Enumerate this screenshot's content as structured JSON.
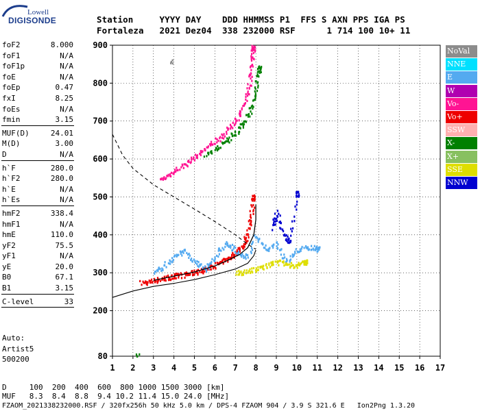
{
  "logo": {
    "top": "Lowell",
    "bottom": "DIGISONDE"
  },
  "header": {
    "line1": "Station     YYYY DAY    DDD HHMMSS P1  FFS S AXN PPS IGA PS",
    "line2": "Fortaleza   2021 Dez04  338 232000 RSF      1 714 100 10+ 11"
  },
  "params": [
    [
      {
        "name": "foF2",
        "value": "8.000"
      },
      {
        "name": "foF1",
        "value": "N/A"
      },
      {
        "name": "foF1p",
        "value": "N/A"
      },
      {
        "name": "foE",
        "value": "N/A"
      },
      {
        "name": "foEp",
        "value": "0.47"
      },
      {
        "name": "fxI",
        "value": "8.25"
      },
      {
        "name": "foEs",
        "value": "N/A"
      },
      {
        "name": "fmin",
        "value": "3.15"
      }
    ],
    [
      {
        "name": "MUF(D)",
        "value": "24.01"
      },
      {
        "name": "M(D)",
        "value": "3.00"
      },
      {
        "name": "D",
        "value": "N/A"
      }
    ],
    [
      {
        "name": "h`F",
        "value": "280.0"
      },
      {
        "name": "h`F2",
        "value": "280.0"
      },
      {
        "name": "h`E",
        "value": "N/A"
      },
      {
        "name": "h`Es",
        "value": "N/A"
      }
    ],
    [
      {
        "name": "hmF2",
        "value": "338.4"
      },
      {
        "name": "hmF1",
        "value": "N/A"
      },
      {
        "name": "hmE",
        "value": "110.0"
      },
      {
        "name": "yF2",
        "value": "75.5"
      },
      {
        "name": "yF1",
        "value": "N/A"
      },
      {
        "name": "yE",
        "value": "20.0"
      },
      {
        "name": "B0",
        "value": "67.1"
      },
      {
        "name": "B1",
        "value": "3.15"
      }
    ],
    [
      {
        "name": "C-level",
        "value": "33"
      }
    ]
  ],
  "auto": {
    "line1": "Auto:",
    "line2": "Artist5",
    "line3": "500200"
  },
  "legend": [
    {
      "label": "NoVal",
      "color": "#8c8c8c"
    },
    {
      "label": "NNE",
      "color": "#00e0ff"
    },
    {
      "label": "E",
      "color": "#54aaf0"
    },
    {
      "label": "W",
      "color": "#b000b0"
    },
    {
      "label": "Vo-",
      "color": "#ff1493"
    },
    {
      "label": "Vo+",
      "color": "#ee0000"
    },
    {
      "label": "SSW",
      "color": "#ffb0b0"
    },
    {
      "label": "X-",
      "color": "#008000"
    },
    {
      "label": "X+",
      "color": "#88c060"
    },
    {
      "label": "SSE",
      "color": "#dede00"
    },
    {
      "label": "NNW",
      "color": "#0000d0"
    }
  ],
  "footer": {
    "line1": "D     100  200  400  600  800 1000 1500 3000 [km]",
    "line2": "MUF   8.3  8.4  8.8  9.4 10.2 11.4 15.0 24.0 [MHz]",
    "line3": "FZAOM_2021338232000.RSF / 320fx256h 50 kHz 5.0 km / DPS-4 FZAOM 904 / 3.9 S 321.6 E   Ion2Png 1.3.20"
  },
  "chart_data": {
    "type": "scatter",
    "xlim": [
      1,
      17
    ],
    "ylim": [
      80,
      900
    ],
    "x_ticks": [
      1,
      2,
      3,
      4,
      5,
      6,
      7,
      8,
      9,
      10,
      11,
      12,
      13,
      14,
      15,
      16,
      17
    ],
    "y_ticks": [
      80,
      200,
      300,
      400,
      500,
      600,
      700,
      800,
      900
    ],
    "grid": true,
    "legend_position": "right",
    "traces": [
      {
        "series": "Vo+",
        "points": [
          [
            2.4,
            275
          ],
          [
            2.8,
            279
          ],
          [
            3.2,
            284
          ],
          [
            3.6,
            288
          ],
          [
            4.0,
            292
          ],
          [
            4.4,
            296
          ],
          [
            4.8,
            301
          ],
          [
            5.2,
            306
          ],
          [
            5.6,
            313
          ],
          [
            6.0,
            322
          ],
          [
            6.4,
            333
          ],
          [
            6.8,
            346
          ],
          [
            7.1,
            360
          ],
          [
            7.4,
            380
          ],
          [
            7.6,
            410
          ],
          [
            7.75,
            450
          ],
          [
            7.85,
            500
          ]
        ]
      },
      {
        "series": "Vo-",
        "points": [
          [
            3.3,
            545
          ],
          [
            3.8,
            562
          ],
          [
            4.3,
            580
          ],
          [
            4.8,
            600
          ],
          [
            5.3,
            620
          ],
          [
            5.8,
            640
          ],
          [
            6.3,
            662
          ],
          [
            6.8,
            690
          ],
          [
            7.2,
            720
          ],
          [
            7.5,
            760
          ],
          [
            7.7,
            810
          ],
          [
            7.8,
            860
          ],
          [
            7.85,
            895
          ]
        ]
      },
      {
        "series": "X-",
        "points": [
          [
            5.5,
            610
          ],
          [
            6.0,
            628
          ],
          [
            6.5,
            648
          ],
          [
            7.0,
            672
          ],
          [
            7.4,
            700
          ],
          [
            7.8,
            740
          ],
          [
            8.0,
            790
          ],
          [
            8.15,
            840
          ]
        ]
      },
      {
        "series": "E",
        "points": [
          [
            3.0,
            300
          ],
          [
            3.5,
            320
          ],
          [
            4.0,
            345
          ],
          [
            4.5,
            360
          ],
          [
            5.0,
            330
          ],
          [
            5.5,
            310
          ],
          [
            6.0,
            345
          ],
          [
            6.5,
            380
          ],
          [
            7.0,
            360
          ],
          [
            7.5,
            340
          ],
          [
            8.0,
            400
          ],
          [
            8.5,
            360
          ],
          [
            9.0,
            380
          ],
          [
            9.5,
            330
          ],
          [
            10.0,
            360
          ],
          [
            10.5,
            370
          ],
          [
            11.0,
            365
          ]
        ]
      },
      {
        "series": "SSE",
        "points": [
          [
            7.0,
            300
          ],
          [
            7.5,
            305
          ],
          [
            8.0,
            310
          ],
          [
            8.5,
            320
          ],
          [
            9.0,
            330
          ],
          [
            9.5,
            325
          ],
          [
            10.0,
            320
          ],
          [
            10.4,
            330
          ]
        ]
      },
      {
        "series": "NNW",
        "points": [
          [
            8.8,
            420
          ],
          [
            9.0,
            460
          ],
          [
            9.4,
            400
          ],
          [
            9.6,
            380
          ],
          [
            10.0,
            510
          ]
        ]
      },
      {
        "series": "NoVal",
        "points": [
          [
            3.9,
            860
          ]
        ]
      },
      {
        "series": "X-",
        "points": [
          [
            2.2,
            82
          ]
        ]
      }
    ],
    "profile_curve": [
      [
        3.0,
        280
      ],
      [
        4.0,
        291
      ],
      [
        5.0,
        302
      ],
      [
        6.0,
        318
      ],
      [
        6.6,
        332
      ],
      [
        7.2,
        348
      ],
      [
        7.6,
        366
      ],
      [
        7.9,
        400
      ],
      [
        8.0,
        440
      ],
      [
        8.0,
        480
      ]
    ],
    "profile_curve_lower": [
      [
        1.0,
        235
      ],
      [
        2.0,
        252
      ],
      [
        3.0,
        264
      ],
      [
        4.0,
        272
      ],
      [
        5.0,
        282
      ],
      [
        6.0,
        295
      ],
      [
        7.0,
        310
      ],
      [
        7.6,
        325
      ],
      [
        7.9,
        345
      ],
      [
        8.0,
        360
      ]
    ],
    "mufd_curve": [
      [
        1.0,
        665
      ],
      [
        1.5,
        610
      ],
      [
        2.0,
        575
      ],
      [
        3.0,
        532
      ],
      [
        4.0,
        500
      ],
      [
        5.0,
        468
      ],
      [
        6.0,
        435
      ],
      [
        7.0,
        400
      ],
      [
        7.6,
        375
      ],
      [
        8.0,
        362
      ]
    ]
  }
}
